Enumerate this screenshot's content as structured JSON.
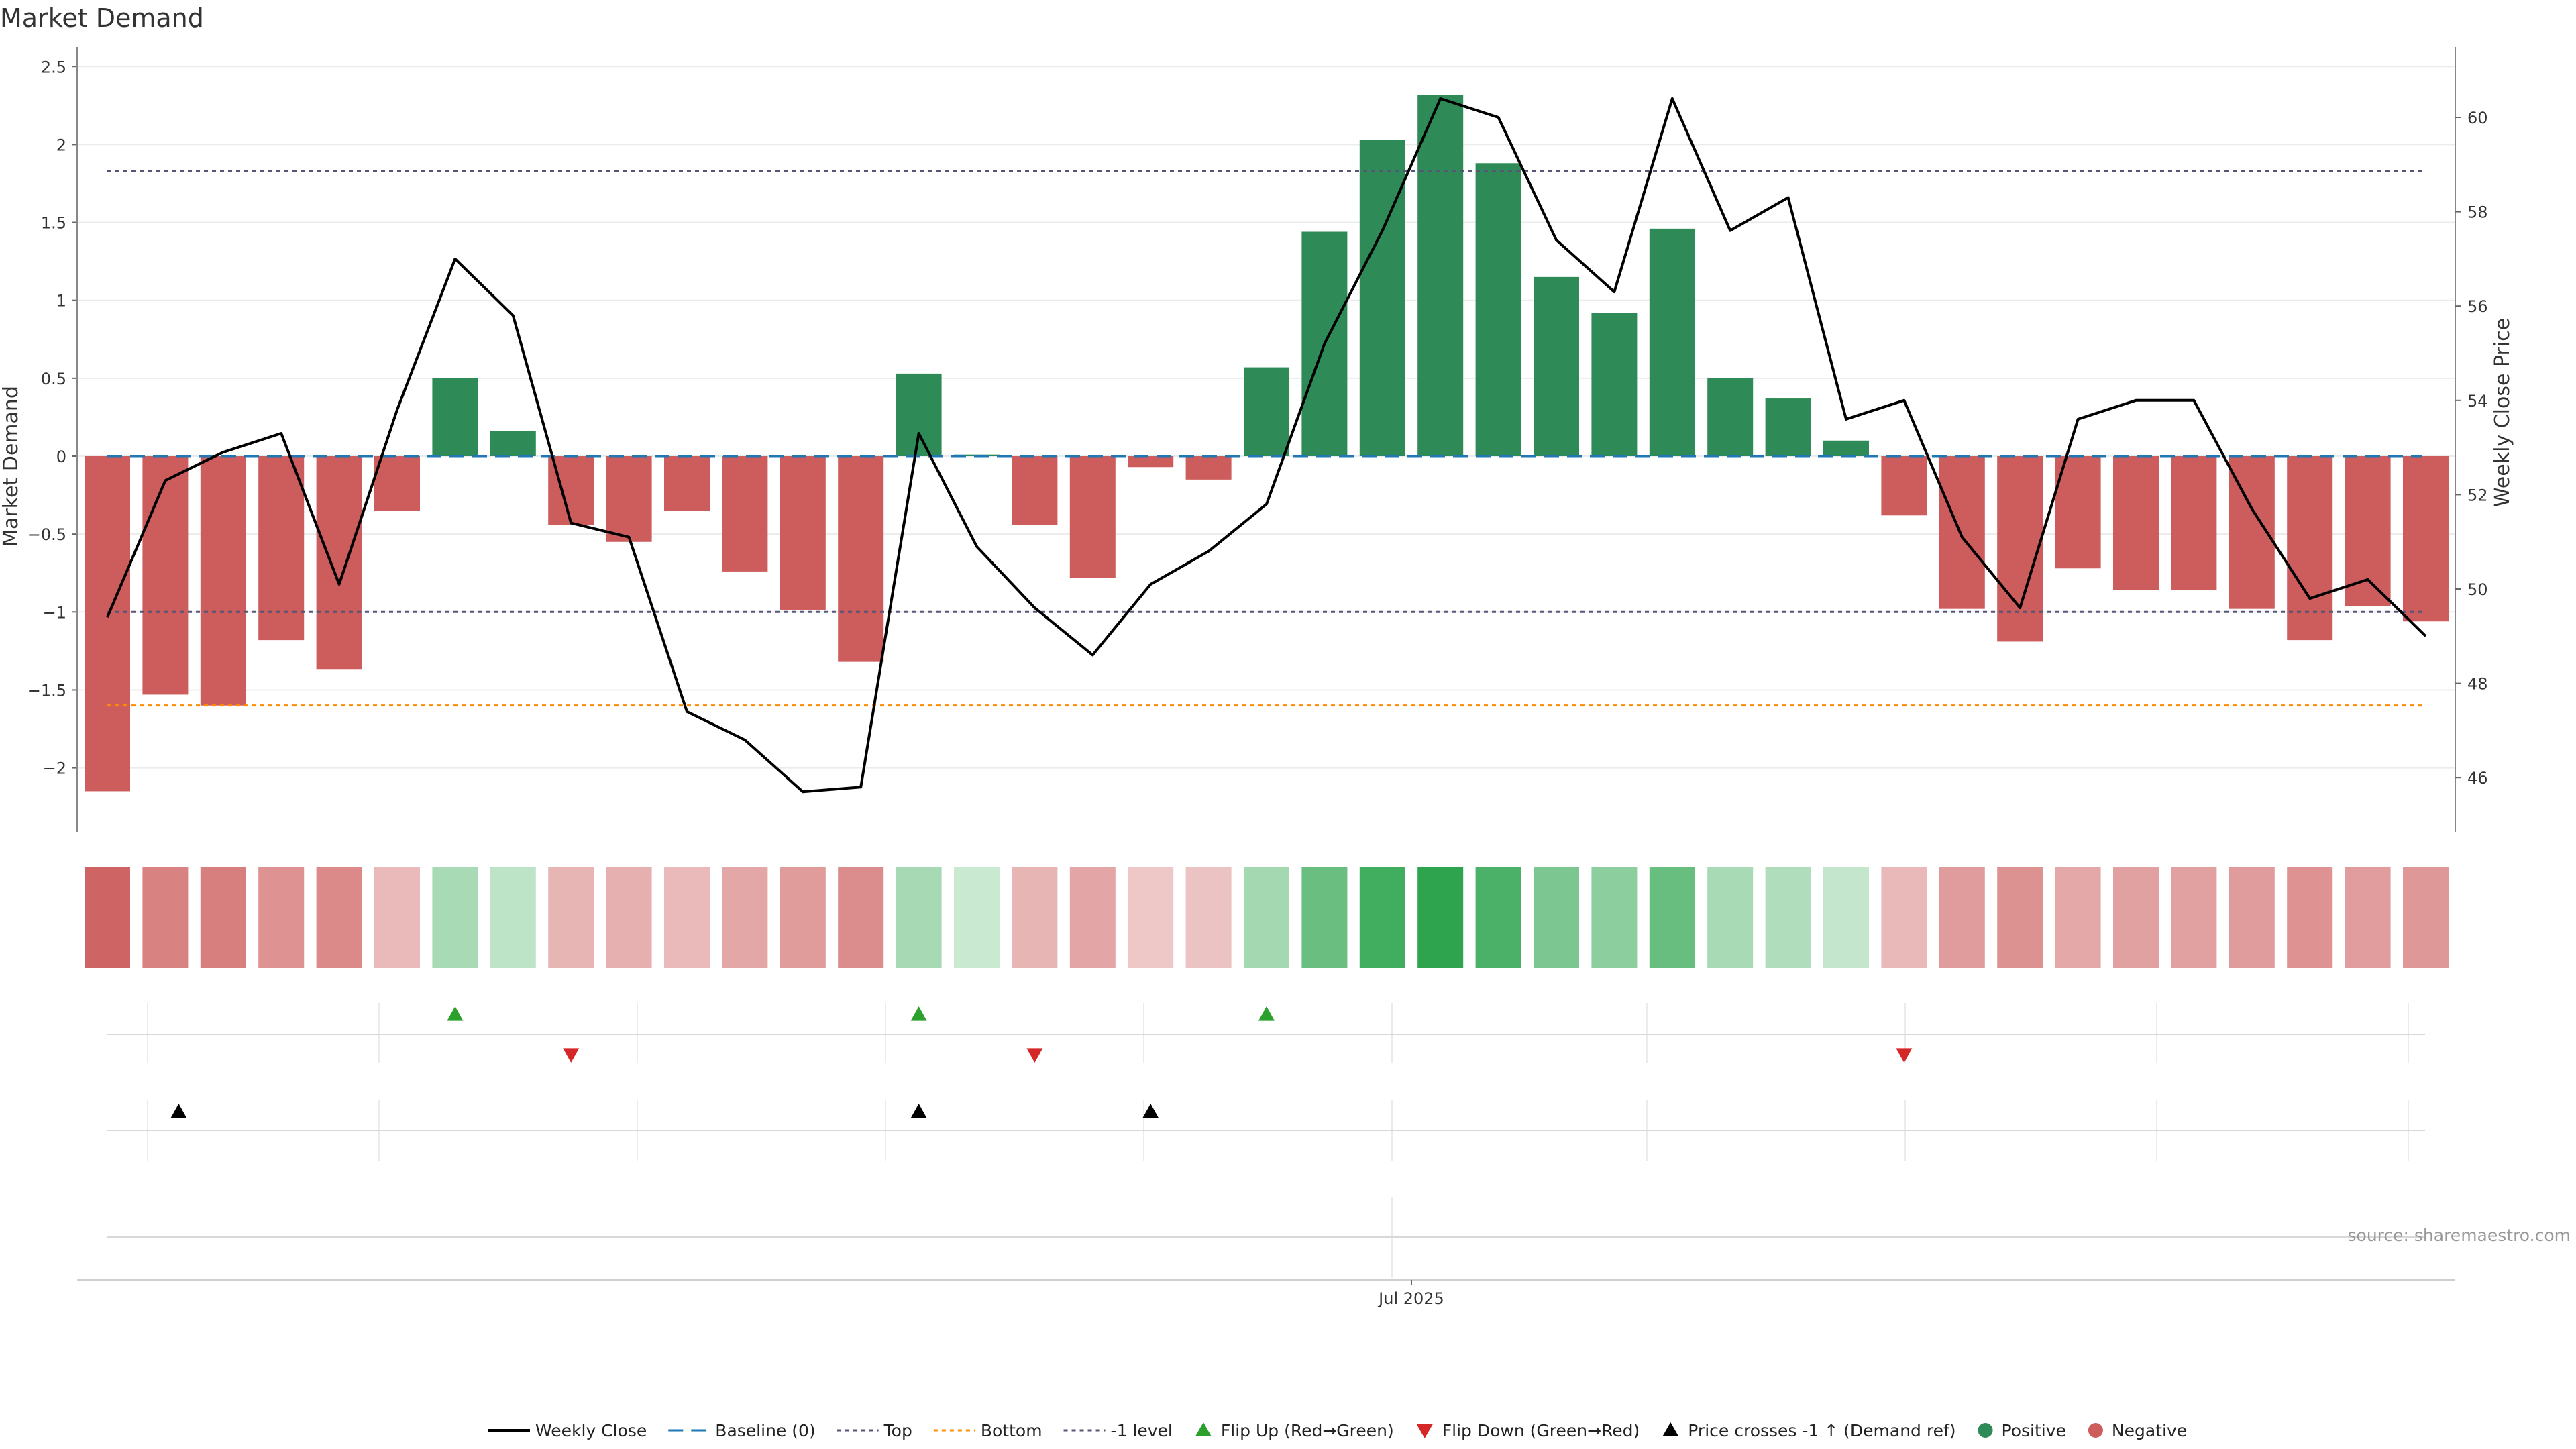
{
  "title": "Market Demand",
  "source": "source: sharemaestro.com",
  "colors": {
    "positive": "#2e8b57",
    "negative": "#cd5c5c",
    "line": "#000000",
    "baseline": "#1f77b4",
    "top": "#555577",
    "bottom": "#ff8c00",
    "minus1": "#555577",
    "flip_up": "#2ca02c",
    "flip_down": "#d62728",
    "cross": "#000000",
    "grid": "#ebebeb"
  },
  "chart_data": {
    "type": "bar",
    "title": "Market Demand",
    "xlabel": "",
    "ylabel": "Market Demand",
    "y2label": "Weekly Close Price",
    "ylim": [
      -2.4,
      2.5
    ],
    "y2lim": [
      44.8,
      61.1
    ],
    "yticks": [
      -2,
      -1.5,
      -1,
      -0.5,
      0,
      0.5,
      1,
      1.5,
      2,
      2.5
    ],
    "yticklabels": [
      "−2",
      "−1.5",
      "−1",
      "−0.5",
      "0",
      "0.5",
      "1",
      "1.5",
      "2",
      "2.5"
    ],
    "y2ticks": [
      46,
      48,
      50,
      52,
      54,
      56,
      58,
      60
    ],
    "xtick_labels": [
      {
        "index": 22.5,
        "label": "Jul 2025"
      }
    ],
    "demand": [
      -2.15,
      -1.53,
      -1.6,
      -1.18,
      -1.37,
      -0.35,
      0.5,
      0.16,
      -0.44,
      -0.55,
      -0.35,
      -0.74,
      -0.99,
      -1.32,
      0.53,
      0.01,
      -0.44,
      -0.78,
      -0.07,
      -0.15,
      0.57,
      1.44,
      2.03,
      2.32,
      1.88,
      1.15,
      0.92,
      1.46,
      0.5,
      0.37,
      0.1,
      -0.38,
      -0.98,
      -1.19,
      -0.72,
      -0.86,
      -0.86,
      -0.98,
      -1.18,
      -0.96,
      -1.06
    ],
    "close": [
      49.4,
      52.3,
      52.9,
      53.3,
      50.1,
      53.8,
      57.0,
      55.8,
      51.4,
      51.1,
      47.4,
      46.8,
      45.7,
      45.8,
      53.3,
      50.9,
      49.6,
      48.6,
      50.1,
      50.8,
      51.8,
      55.2,
      57.6,
      60.4,
      60.0,
      57.4,
      56.3,
      60.4,
      57.6,
      58.3,
      53.6,
      54.0,
      51.1,
      49.6,
      53.6,
      54.0,
      54.0,
      51.7,
      49.8,
      50.2,
      49.0
    ],
    "levels": {
      "baseline": 0,
      "top": 1.83,
      "bottom": -1.6,
      "minus1": -1.0
    },
    "flip_up_idx": [
      6,
      14,
      20
    ],
    "flip_down_idx": [
      8,
      16,
      31
    ],
    "cross_idx": [
      1,
      14,
      18
    ],
    "series": [
      {
        "name": "Weekly Close",
        "values": "close"
      },
      {
        "name": "Market Demand",
        "values": "demand"
      }
    ]
  },
  "legend": [
    {
      "key": "line",
      "label": "Weekly Close"
    },
    {
      "key": "baseline",
      "label": "Baseline (0)"
    },
    {
      "key": "top",
      "label": "Top"
    },
    {
      "key": "bottom",
      "label": "Bottom"
    },
    {
      "key": "minus1",
      "label": "-1 level"
    },
    {
      "key": "flip_up",
      "label": "Flip Up (Red→Green)"
    },
    {
      "key": "flip_down",
      "label": "Flip Down (Green→Red)"
    },
    {
      "key": "cross",
      "label": "Price crosses -1 ↑ (Demand ref)"
    },
    {
      "key": "positive",
      "label": "Positive"
    },
    {
      "key": "negative",
      "label": "Negative"
    }
  ]
}
